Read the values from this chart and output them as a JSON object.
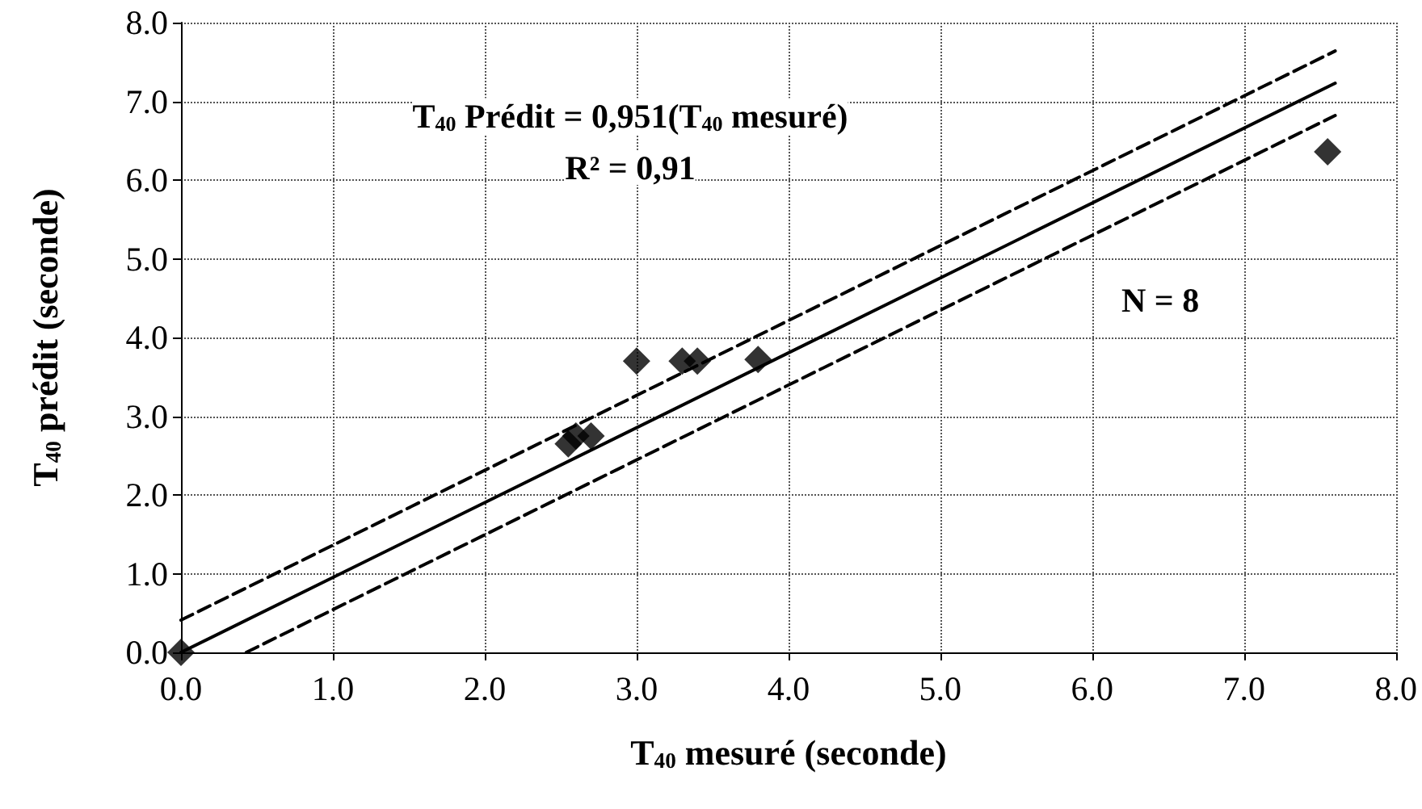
{
  "chart_data": {
    "type": "scatter",
    "xlabel": "T$_{40}$ mesuré (seconde)",
    "ylabel": "T$_{40}$ prédit (seconde)",
    "annotations": [
      "T$_{40}$ Prédit = 0,951(T$_{40}$ mesuré)",
      "R² = 0,91",
      "N = 8"
    ],
    "series": [
      {
        "color": "#000000",
        "marker": "diamond",
        "x": [
          0,
          2.55,
          2.6,
          2.7,
          3.0,
          3.3,
          3.4,
          3.8,
          7.55
        ],
        "values": [
          0,
          2.65,
          2.75,
          2.75,
          3.7,
          3.7,
          3.7,
          3.72,
          6.36
        ]
      },
      {
        "type": "line",
        "color": "#000000",
        "line_style": "solid",
        "x": [
          0,
          7.6
        ],
        "values": [
          0,
          7.23
        ]
      },
      {
        "type": "line",
        "color": "#000000",
        "line_style": "dashed",
        "x": [
          0,
          7.6
        ],
        "values": [
          0.41,
          7.64
        ]
      },
      {
        "type": "line",
        "color": "#000000",
        "line_style": "dashed",
        "x": [
          0.43,
          7.6
        ],
        "values": [
          0,
          6.82
        ]
      }
    ],
    "xlim": [
      0,
      8
    ],
    "ylim": [
      0,
      8
    ],
    "xticks": [
      {
        "value": 0,
        "label": "0.0"
      },
      {
        "value": 1,
        "label": "1.0"
      },
      {
        "value": 2,
        "label": "2.0"
      },
      {
        "value": 3,
        "label": "3.0"
      },
      {
        "value": 4,
        "label": "4.0"
      },
      {
        "value": 5,
        "label": "5.0"
      },
      {
        "value": 6,
        "label": "6.0"
      },
      {
        "value": 7,
        "label": "7.0"
      },
      {
        "value": 8,
        "label": "8.0"
      }
    ],
    "yticks": [
      {
        "value": 0,
        "label": "0.0"
      },
      {
        "value": 1,
        "label": "1.0"
      },
      {
        "value": 2,
        "label": "2.0"
      },
      {
        "value": 3,
        "label": "3.0"
      },
      {
        "value": 4,
        "label": "4.0"
      },
      {
        "value": 5,
        "label": "5.0"
      },
      {
        "value": 6,
        "label": "6.0"
      },
      {
        "value": 7,
        "label": "7.0"
      },
      {
        "value": 8,
        "label": "8.0"
      }
    ],
    "grid": true
  }
}
